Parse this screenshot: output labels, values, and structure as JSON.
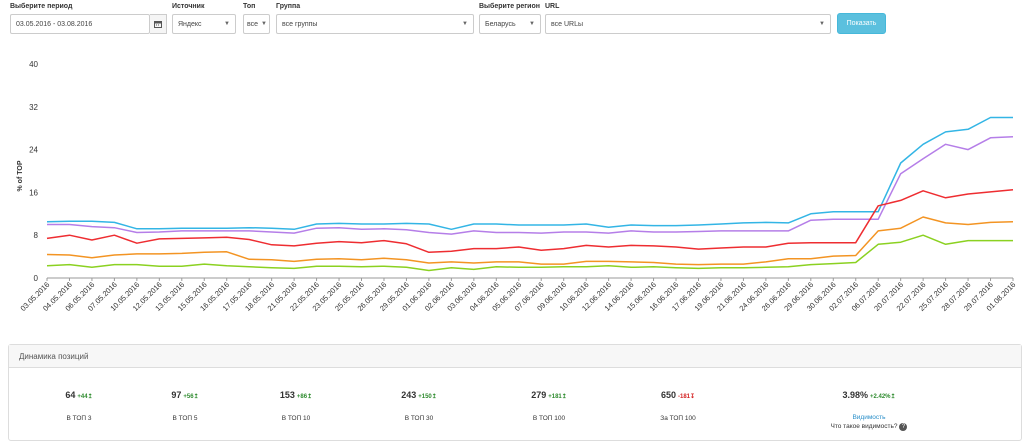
{
  "filters": {
    "period_label": "Выберите период",
    "period_value": "03.05.2016 - 03.08.2016",
    "source_label": "Источник",
    "source_value": "Яндекс",
    "top_label": "Топ",
    "top_value": "все",
    "group_label": "Группа",
    "group_value": "все группы",
    "region_label": "Выберите регион",
    "region_value": "Беларусь",
    "url_label": "URL",
    "url_value": "все URLы",
    "show_button": "Показать"
  },
  "colors": {
    "blue": "#33b5e5",
    "purple": "#b57ee8",
    "red": "#ee2d31",
    "orange": "#f39423",
    "green": "#8bd121"
  },
  "chart_data": {
    "type": "line",
    "ylabel": "% of TOP",
    "ylim": [
      0,
      40
    ],
    "yticks": [
      0,
      8,
      16,
      24,
      32,
      40
    ],
    "grid": false,
    "x": [
      "03.05.2016",
      "04.05.2016",
      "06.05.2016",
      "07.05.2016",
      "10.05.2016",
      "12.05.2016",
      "13.05.2016",
      "15.05.2016",
      "16.05.2016",
      "17.05.2016",
      "18.05.2016",
      "21.05.2016",
      "22.05.2016",
      "23.05.2016",
      "25.05.2016",
      "26.05.2016",
      "29.05.2016",
      "01.06.2016",
      "02.06.2016",
      "03.06.2016",
      "04.06.2016",
      "05.06.2016",
      "07.06.2016",
      "09.06.2016",
      "10.06.2016",
      "12.06.2016",
      "14.06.2016",
      "15.06.2016",
      "16.06.2016",
      "17.06.2016",
      "19.06.2016",
      "21.06.2016",
      "24.06.2016",
      "26.06.2016",
      "29.06.2016",
      "30.06.2016",
      "02.07.2016",
      "06.07.2016",
      "20.07.2016",
      "22.07.2016",
      "25.07.2016",
      "28.07.2016",
      "29.07.2016",
      "01.08.2016"
    ],
    "series": [
      {
        "color": "#33b5e5",
        "values": [
          10.5,
          10.6,
          10.6,
          10.4,
          9.2,
          9.2,
          9.3,
          9.3,
          9.3,
          9.4,
          9.3,
          9.1,
          10.1,
          10.2,
          10.1,
          10.1,
          10.2,
          10.1,
          9.1,
          10.1,
          10.1,
          9.9,
          9.9,
          9.9,
          10.1,
          9.5,
          9.9,
          9.8,
          9.8,
          9.9,
          10.1,
          10.3,
          10.4,
          10.3,
          12.0,
          12.4,
          12.4,
          12.4,
          21.5,
          25.0,
          27.3,
          27.8,
          30.0,
          30.0
        ]
      },
      {
        "color": "#b57ee8",
        "values": [
          10.0,
          10.0,
          9.6,
          9.4,
          8.5,
          8.6,
          8.8,
          8.8,
          8.8,
          8.8,
          8.6,
          8.4,
          9.3,
          9.4,
          9.1,
          9.2,
          9.0,
          8.5,
          8.2,
          8.8,
          8.5,
          8.5,
          8.4,
          8.6,
          8.6,
          8.4,
          8.8,
          8.6,
          8.6,
          8.7,
          8.8,
          8.8,
          8.8,
          8.8,
          10.8,
          11.0,
          11.0,
          11.0,
          19.5,
          22.3,
          25.0,
          24.0,
          26.2,
          26.4
        ]
      },
      {
        "color": "#ee2d31",
        "values": [
          7.4,
          8.0,
          7.1,
          8.0,
          6.5,
          7.3,
          7.4,
          7.5,
          7.6,
          7.2,
          6.2,
          6.0,
          6.5,
          6.8,
          6.6,
          7.0,
          6.4,
          4.8,
          5.0,
          5.5,
          5.5,
          5.8,
          5.2,
          5.5,
          6.1,
          5.8,
          6.1,
          6.0,
          5.8,
          5.4,
          5.6,
          5.8,
          5.8,
          6.5,
          6.6,
          6.6,
          6.6,
          13.5,
          14.5,
          16.3,
          15.0,
          15.7,
          16.1,
          16.5
        ]
      },
      {
        "color": "#f39423",
        "values": [
          4.4,
          4.3,
          3.8,
          4.3,
          4.5,
          4.5,
          4.6,
          4.8,
          4.9,
          3.5,
          3.4,
          3.1,
          3.5,
          3.6,
          3.4,
          3.7,
          3.4,
          2.8,
          3.0,
          2.8,
          3.0,
          3.0,
          2.6,
          2.6,
          3.1,
          3.1,
          3.0,
          2.9,
          2.6,
          2.5,
          2.6,
          2.6,
          3.0,
          3.6,
          3.6,
          4.1,
          4.2,
          8.8,
          9.3,
          11.4,
          10.3,
          10.0,
          10.4,
          10.5
        ]
      },
      {
        "color": "#8bd121",
        "values": [
          2.3,
          2.5,
          2.0,
          2.5,
          2.5,
          2.2,
          2.2,
          2.6,
          2.3,
          2.1,
          1.9,
          1.8,
          2.2,
          2.2,
          2.1,
          2.2,
          2.0,
          1.4,
          1.9,
          1.6,
          2.1,
          2.0,
          2.0,
          2.1,
          2.1,
          2.3,
          2.0,
          2.1,
          1.9,
          1.8,
          1.9,
          1.9,
          2.0,
          2.1,
          2.5,
          2.7,
          2.9,
          6.3,
          6.7,
          8.0,
          6.3,
          7.0,
          7.0,
          7.0
        ]
      }
    ]
  },
  "dynamics": {
    "title": "Динамика позиций",
    "stats": [
      {
        "value": "64",
        "delta": "+44↥",
        "delta_color": "#2e8b2e",
        "label": "В ТОП 3"
      },
      {
        "value": "97",
        "delta": "+56↥",
        "delta_color": "#2e8b2e",
        "label": "В ТОП 5"
      },
      {
        "value": "153",
        "delta": "+86↥",
        "delta_color": "#2e8b2e",
        "label": "В ТОП 10"
      },
      {
        "value": "243",
        "delta": "+150↥",
        "delta_color": "#2e8b2e",
        "label": "В ТОП 30"
      },
      {
        "value": "279",
        "delta": "+181↥",
        "delta_color": "#2e8b2e",
        "label": "В ТОП 100"
      },
      {
        "value": "650",
        "delta": "-181↧",
        "delta_color": "#d42222",
        "label": "За ТОП 100"
      }
    ],
    "visibility": {
      "value": "3.98%",
      "delta": "+2.42%↥",
      "delta_color": "#2e8b2e",
      "link": "Видимость",
      "question": "Что такое видимость?"
    }
  }
}
